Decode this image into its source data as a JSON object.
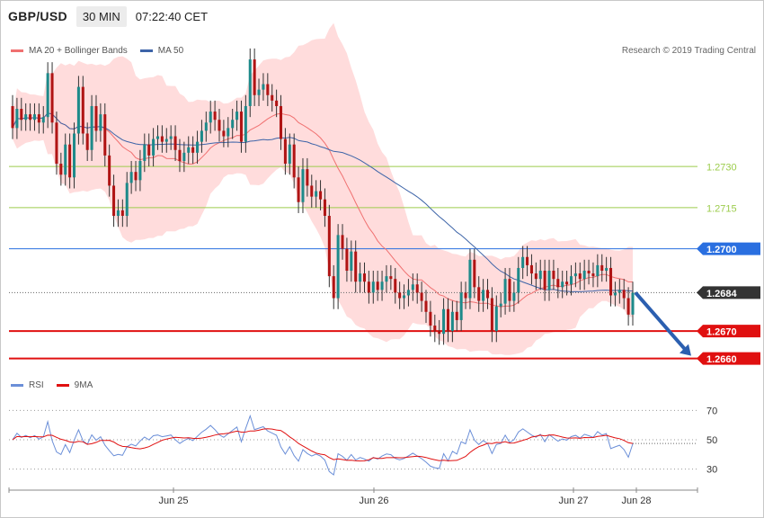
{
  "header": {
    "symbol": "GBP/USD",
    "timeframe": "30 MIN",
    "time": "07:22:40 CET"
  },
  "legend": {
    "ma20_label": "MA 20 + Bollinger Bands",
    "ma50_label": "MA 50",
    "copyright": "Research © 2019 Trading Central"
  },
  "rsi_legend": {
    "rsi_label": "RSI",
    "ma_label": "9MA"
  },
  "colors": {
    "bull": "#1d8a8a",
    "bear": "#b01414",
    "ma20": "#f07070",
    "bollinger": "#ffd8d8",
    "ma50": "#3d64a8",
    "green_level": "#9ccc4c",
    "blue_level": "#2a6fe0",
    "red_level": "#e01010",
    "last_price": "#333333",
    "rsi": "#6b8fd8",
    "rsi_ma": "#e01010",
    "arrow": "#2b5fb0"
  },
  "chart_data": [
    {
      "type": "line",
      "title": "GBP/USD 30 MIN",
      "ylim": [
        1.2653,
        1.2771
      ],
      "x_tick_labels": [
        "Jun 25",
        "Jun 26",
        "Jun 27",
        "Jun 28"
      ],
      "levels": [
        {
          "value": 1.273,
          "label": "1.2730",
          "color": "green"
        },
        {
          "value": 1.2715,
          "label": "1.2715",
          "color": "green"
        },
        {
          "value": 1.27,
          "label": "1.2700",
          "color": "blue"
        },
        {
          "value": 1.2684,
          "label": "1.2684",
          "color": "last"
        },
        {
          "value": 1.267,
          "label": "1.2670",
          "color": "red"
        },
        {
          "value": 1.266,
          "label": "1.2660",
          "color": "red"
        }
      ],
      "series": [
        {
          "name": "MA 20 + Bollinger Bands"
        },
        {
          "name": "MA 50"
        }
      ],
      "candles_note": "30-minute candlesticks approximated from the figure",
      "candles": [
        [
          1.2752,
          1.2744
        ],
        [
          1.2744,
          1.2751
        ],
        [
          1.2751,
          1.2747
        ],
        [
          1.2747,
          1.2749
        ],
        [
          1.2749,
          1.2747
        ],
        [
          1.2747,
          1.2749
        ],
        [
          1.2749,
          1.2746
        ],
        [
          1.2746,
          1.2748
        ],
        [
          1.2748,
          1.2764
        ],
        [
          1.2764,
          1.2746
        ],
        [
          1.2746,
          1.2731
        ],
        [
          1.2731,
          1.2727
        ],
        [
          1.2727,
          1.2738
        ],
        [
          1.2738,
          1.2726
        ],
        [
          1.2726,
          1.2742
        ],
        [
          1.2742,
          1.2759
        ],
        [
          1.2759,
          1.2742
        ],
        [
          1.2742,
          1.2736
        ],
        [
          1.2736,
          1.2752
        ],
        [
          1.2752,
          1.2743
        ],
        [
          1.2743,
          1.2749
        ],
        [
          1.2749,
          1.2734
        ],
        [
          1.2734,
          1.2723
        ],
        [
          1.2723,
          1.2712
        ],
        [
          1.2712,
          1.2714
        ],
        [
          1.2714,
          1.2712
        ],
        [
          1.2712,
          1.2724
        ],
        [
          1.2724,
          1.2728
        ],
        [
          1.2728,
          1.2725
        ],
        [
          1.2725,
          1.2732
        ],
        [
          1.2732,
          1.2738
        ],
        [
          1.2738,
          1.2734
        ],
        [
          1.2734,
          1.274
        ],
        [
          1.274,
          1.2741
        ],
        [
          1.2741,
          1.2739
        ],
        [
          1.2739,
          1.274
        ],
        [
          1.274,
          1.2741
        ],
        [
          1.2741,
          1.2736
        ],
        [
          1.2736,
          1.2732
        ],
        [
          1.2732,
          1.2735
        ],
        [
          1.2735,
          1.2737
        ],
        [
          1.2737,
          1.2735
        ],
        [
          1.2735,
          1.2739
        ],
        [
          1.2739,
          1.2743
        ],
        [
          1.2743,
          1.2746
        ],
        [
          1.2746,
          1.275
        ],
        [
          1.275,
          1.2747
        ],
        [
          1.2747,
          1.2743
        ],
        [
          1.2743,
          1.2741
        ],
        [
          1.2741,
          1.2744
        ],
        [
          1.2744,
          1.2747
        ],
        [
          1.2747,
          1.275
        ],
        [
          1.275,
          1.2739
        ],
        [
          1.2739,
          1.2752
        ],
        [
          1.2752,
          1.2769
        ],
        [
          1.2769,
          1.2756
        ],
        [
          1.2756,
          1.2758
        ],
        [
          1.2758,
          1.276
        ],
        [
          1.276,
          1.2756
        ],
        [
          1.2756,
          1.2754
        ],
        [
          1.2754,
          1.2752
        ],
        [
          1.2752,
          1.274
        ],
        [
          1.274,
          1.2731
        ],
        [
          1.2731,
          1.2738
        ],
        [
          1.2738,
          1.2726
        ],
        [
          1.2726,
          1.2717
        ],
        [
          1.2717,
          1.2729
        ],
        [
          1.2729,
          1.2723
        ],
        [
          1.2723,
          1.2719
        ],
        [
          1.2719,
          1.2721
        ],
        [
          1.2721,
          1.2718
        ],
        [
          1.2718,
          1.2712
        ],
        [
          1.2712,
          1.269
        ],
        [
          1.269,
          1.2682
        ],
        [
          1.2682,
          1.2705
        ],
        [
          1.2705,
          1.27
        ],
        [
          1.27,
          1.2692
        ],
        [
          1.2692,
          1.2699
        ],
        [
          1.2699,
          1.2688
        ],
        [
          1.2688,
          1.2691
        ],
        [
          1.2691,
          1.2688
        ],
        [
          1.2688,
          1.2684
        ],
        [
          1.2684,
          1.2688
        ],
        [
          1.2688,
          1.2685
        ],
        [
          1.2685,
          1.2688
        ],
        [
          1.2688,
          1.269
        ],
        [
          1.269,
          1.2689
        ],
        [
          1.2689,
          1.2684
        ],
        [
          1.2684,
          1.2682
        ],
        [
          1.2682,
          1.2683
        ],
        [
          1.2683,
          1.2685
        ],
        [
          1.2685,
          1.2687
        ],
        [
          1.2687,
          1.2684
        ],
        [
          1.2684,
          1.2681
        ],
        [
          1.2681,
          1.2677
        ],
        [
          1.2677,
          1.2672
        ],
        [
          1.2672,
          1.267
        ],
        [
          1.267,
          1.2669
        ],
        [
          1.2669,
          1.2678
        ],
        [
          1.2678,
          1.267
        ],
        [
          1.267,
          1.2677
        ],
        [
          1.2677,
          1.2674
        ],
        [
          1.2674,
          1.2684
        ],
        [
          1.2684,
          1.2682
        ],
        [
          1.2682,
          1.2696
        ],
        [
          1.2696,
          1.2686
        ],
        [
          1.2686,
          1.2681
        ],
        [
          1.2681,
          1.2685
        ],
        [
          1.2685,
          1.2682
        ],
        [
          1.2682,
          1.267
        ],
        [
          1.267,
          1.2679
        ],
        [
          1.2679,
          1.268
        ],
        [
          1.268,
          1.2689
        ],
        [
          1.2689,
          1.2681
        ],
        [
          1.2681,
          1.2684
        ],
        [
          1.2684,
          1.2693
        ],
        [
          1.2693,
          1.2697
        ],
        [
          1.2697,
          1.2694
        ],
        [
          1.2694,
          1.2691
        ],
        [
          1.2691,
          1.2689
        ],
        [
          1.2689,
          1.2692
        ],
        [
          1.2692,
          1.2685
        ],
        [
          1.2685,
          1.2692
        ],
        [
          1.2692,
          1.2689
        ],
        [
          1.2689,
          1.2686
        ],
        [
          1.2686,
          1.2688
        ],
        [
          1.2688,
          1.2687
        ],
        [
          1.2687,
          1.269
        ],
        [
          1.269,
          1.2691
        ],
        [
          1.2691,
          1.2689
        ],
        [
          1.2689,
          1.2692
        ],
        [
          1.2692,
          1.2691
        ],
        [
          1.2691,
          1.269
        ],
        [
          1.269,
          1.2694
        ],
        [
          1.2694,
          1.2692
        ],
        [
          1.2692,
          1.2693
        ],
        [
          1.2693,
          1.2683
        ],
        [
          1.2683,
          1.2684
        ],
        [
          1.2684,
          1.2685
        ],
        [
          1.2685,
          1.2682
        ],
        [
          1.2682,
          1.2676
        ],
        [
          1.2676,
          1.2684
        ]
      ]
    },
    {
      "type": "line",
      "title": "RSI",
      "ylim": [
        20,
        80
      ],
      "y_tick_labels": [
        "70",
        "50",
        "30"
      ],
      "series": [
        {
          "name": "RSI"
        },
        {
          "name": "9MA"
        }
      ]
    }
  ]
}
